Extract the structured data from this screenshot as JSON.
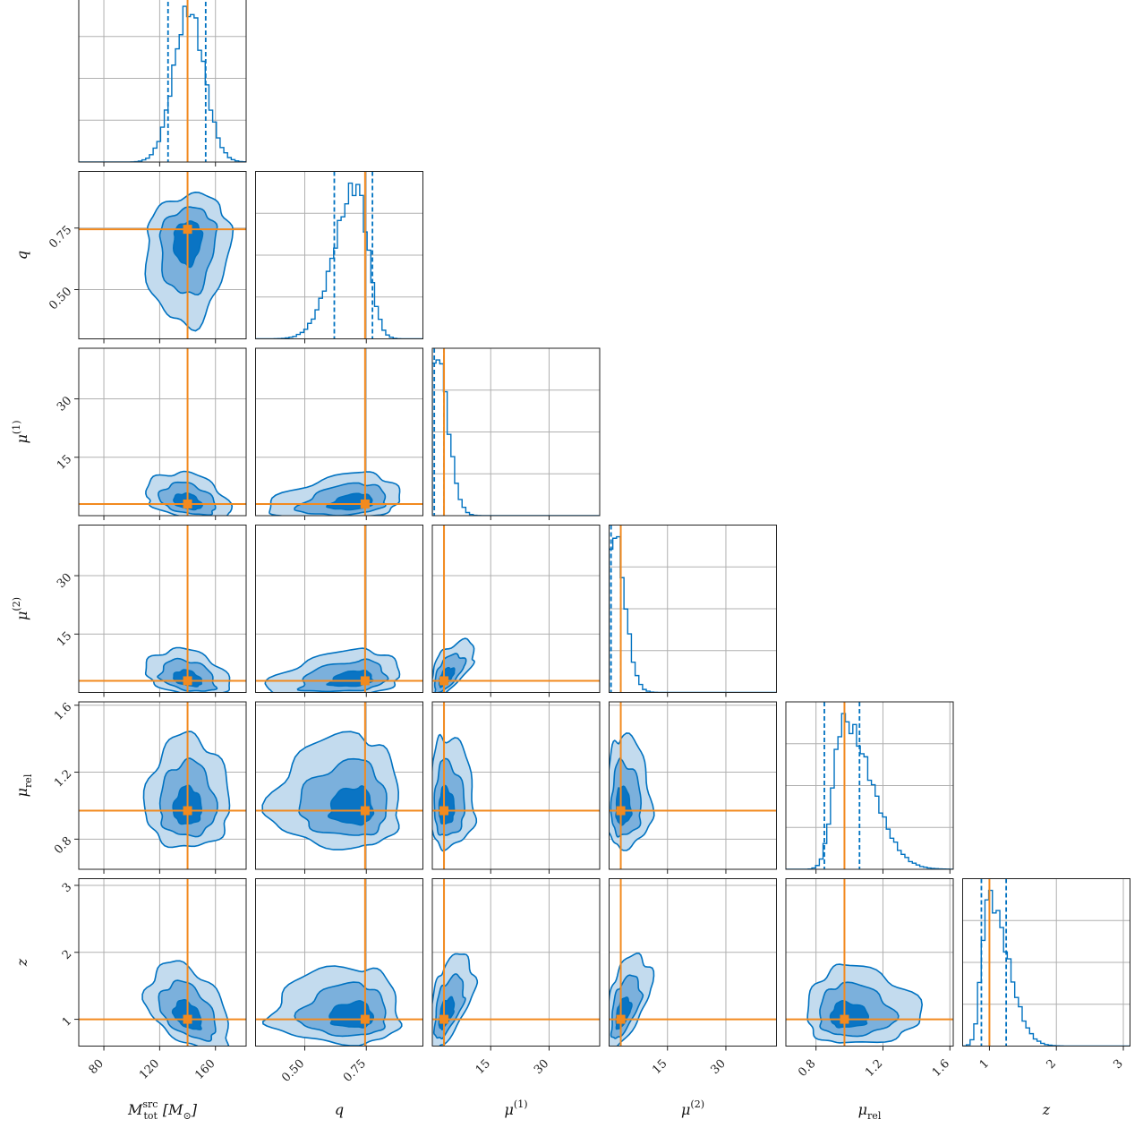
{
  "chart_data": {
    "type": "corner",
    "parameters": [
      {
        "key": "mtot",
        "label": "M",
        "label_sup": "src",
        "label_sub": "tot",
        "label_unit": "[M",
        "label_unit_sub": "⊙",
        "label_unit_close": "]",
        "range": [
          62,
          182
        ],
        "ticks": [
          80,
          120,
          160
        ],
        "tick_labels": [
          "80",
          "120",
          "160"
        ],
        "truth": 140,
        "median": 140,
        "quantiles": [
          126,
          153
        ],
        "peak": 141,
        "sigma": 10,
        "tail": "both"
      },
      {
        "key": "q",
        "label": "q",
        "range": [
          0.3,
          0.98
        ],
        "ticks": [
          0.5,
          0.75
        ],
        "tick_labels": [
          "0.50",
          "0.75"
        ],
        "truth": 0.745,
        "median": 0.72,
        "quantiles": [
          0.62,
          0.775
        ],
        "peak": 0.71,
        "sigma": 0.055,
        "tail": "left"
      },
      {
        "key": "mu1",
        "label": "μ",
        "label_sup": "(1)",
        "range": [
          0,
          43
        ],
        "ticks": [
          15,
          30
        ],
        "tick_labels": [
          "15",
          "30"
        ],
        "truth": 3,
        "median": 3,
        "quantiles": [
          0.5,
          3
        ],
        "peak": 1,
        "sigma": 1.2,
        "tail": "right"
      },
      {
        "key": "mu2",
        "label": "μ",
        "label_sup": "(2)",
        "range": [
          0,
          43
        ],
        "ticks": [
          15,
          30
        ],
        "tick_labels": [
          "15",
          "30"
        ],
        "truth": 3,
        "median": 3,
        "quantiles": [
          0.5,
          3
        ],
        "peak": 1,
        "sigma": 1.2,
        "tail": "right"
      },
      {
        "key": "murel",
        "label": "μ",
        "label_sub": "rel",
        "range": [
          0.62,
          1.62
        ],
        "ticks": [
          0.8,
          1.2,
          1.6
        ],
        "tick_labels": [
          "0.8",
          "1.2",
          "1.6"
        ],
        "truth": 0.97,
        "median": 0.96,
        "quantiles": [
          0.85,
          1.06
        ],
        "peak": 0.96,
        "sigma": 0.07,
        "tail": "right"
      },
      {
        "key": "z",
        "label": "z",
        "range": [
          0.6,
          3.1
        ],
        "ticks": [
          1,
          2,
          3
        ],
        "tick_labels": [
          "1",
          "2",
          "3"
        ],
        "truth": 1.0,
        "median": 1.0,
        "quantiles": [
          0.88,
          1.25
        ],
        "peak": 0.98,
        "sigma": 0.12,
        "tail": "right"
      }
    ],
    "y_tick_labels": {
      "q": [
        "0.50",
        "0.75"
      ],
      "mu1": [
        "15",
        "30"
      ],
      "mu2": [
        "15",
        "30"
      ],
      "murel": [
        "0.8",
        "1.2",
        "1.6"
      ],
      "z": [
        "1",
        "2",
        "3"
      ]
    },
    "contour_levels": [
      "1σ",
      "2σ",
      "3σ"
    ],
    "colors": {
      "posterior": "#0072c1",
      "truth": "#f28a1f",
      "fill_outer": "#c3dbee",
      "fill_mid": "#7bb0dc",
      "fill_inner": "#0a74c4",
      "grid": "#b0b0b0"
    },
    "grid": true
  }
}
